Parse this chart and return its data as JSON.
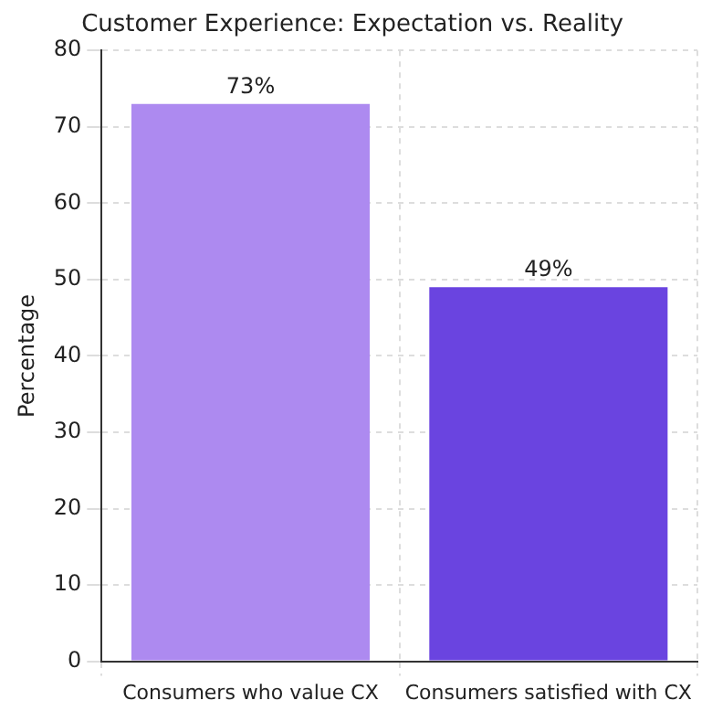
{
  "chart_data": {
    "type": "bar",
    "title": "Customer Experience: Expectation vs. Reality",
    "ylabel": "Percentage",
    "categories": [
      "Consumers who value CX",
      "Consumers satisfied with CX"
    ],
    "values": [
      73,
      49
    ],
    "colors": [
      "#ad8af0",
      "#6a44e0"
    ],
    "value_labels": [
      "73%",
      "49%"
    ],
    "ylim": [
      0,
      80
    ],
    "yticks": [
      0,
      10,
      20,
      30,
      40,
      50,
      60,
      70,
      80
    ],
    "grid": true,
    "legend": false
  }
}
